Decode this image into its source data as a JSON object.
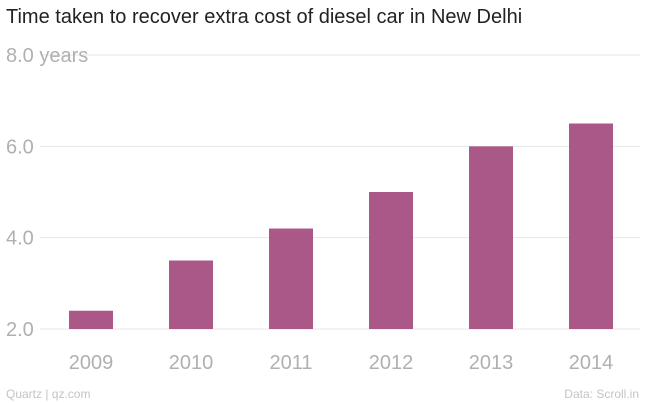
{
  "colors": {
    "bar": "#aa5887",
    "grid": "#e6e6e6",
    "axis_text": "#b0b0b0",
    "title": "#222222",
    "footer": "#c4c4c4"
  },
  "chart_data": {
    "type": "bar",
    "title": "Time taken to recover extra cost of diesel car in New Delhi",
    "categories": [
      "2009",
      "2010",
      "2011",
      "2012",
      "2013",
      "2014"
    ],
    "values": [
      2.4,
      3.5,
      4.2,
      5.0,
      6.0,
      6.5
    ],
    "ylim": [
      2.0,
      8.0
    ],
    "yticks": [
      2.0,
      4.0,
      6.0,
      8.0
    ],
    "ytick_labels": [
      "2.0",
      "4.0",
      "6.0",
      "8.0 years"
    ],
    "xlabel": "",
    "ylabel": "years",
    "grid": true
  },
  "footer": {
    "source_left": "Quartz | qz.com",
    "source_right": "Data: Scroll.in"
  }
}
